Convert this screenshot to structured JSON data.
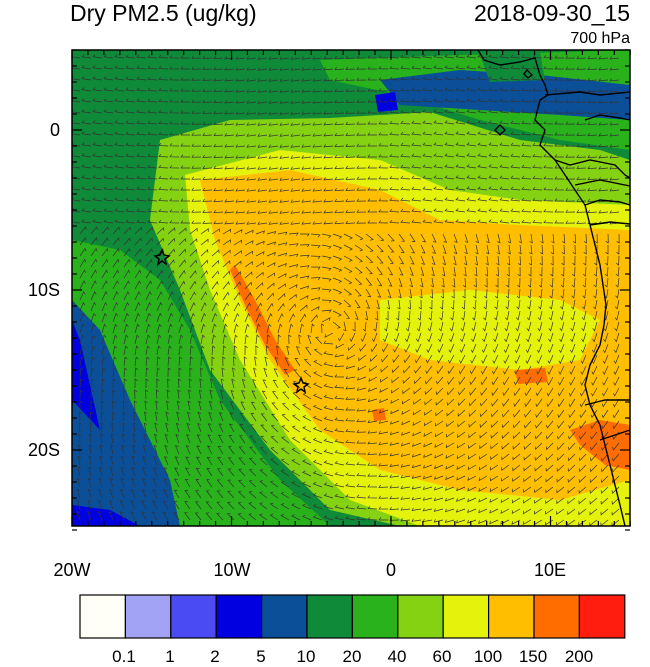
{
  "title": {
    "left": "Dry PM2.5 (ug/kg)",
    "right": "2018-09-30_15",
    "level": "700 hPa"
  },
  "axes": {
    "lat_labels": [
      "0",
      "10S",
      "20S"
    ],
    "lon_labels": [
      "20W",
      "10W",
      "0",
      "10E"
    ]
  },
  "colorbar": {
    "labels": [
      "0.1",
      "1",
      "2",
      "5",
      "10",
      "20",
      "40",
      "60",
      "100",
      "150",
      "200"
    ],
    "colors": [
      "#fffff8",
      "#a3a3f5",
      "#4b4bf3",
      "#0000e1",
      "#0b4f99",
      "#0e8a38",
      "#29b21b",
      "#84d212",
      "#e5f20b",
      "#ffbf00",
      "#ff6c00",
      "#ff1d10"
    ]
  },
  "markers": [
    {
      "name": "star-marker-west"
    },
    {
      "name": "star-marker-center"
    }
  ],
  "colors": {
    "background": "#ffffff",
    "frame": "#000000"
  }
}
